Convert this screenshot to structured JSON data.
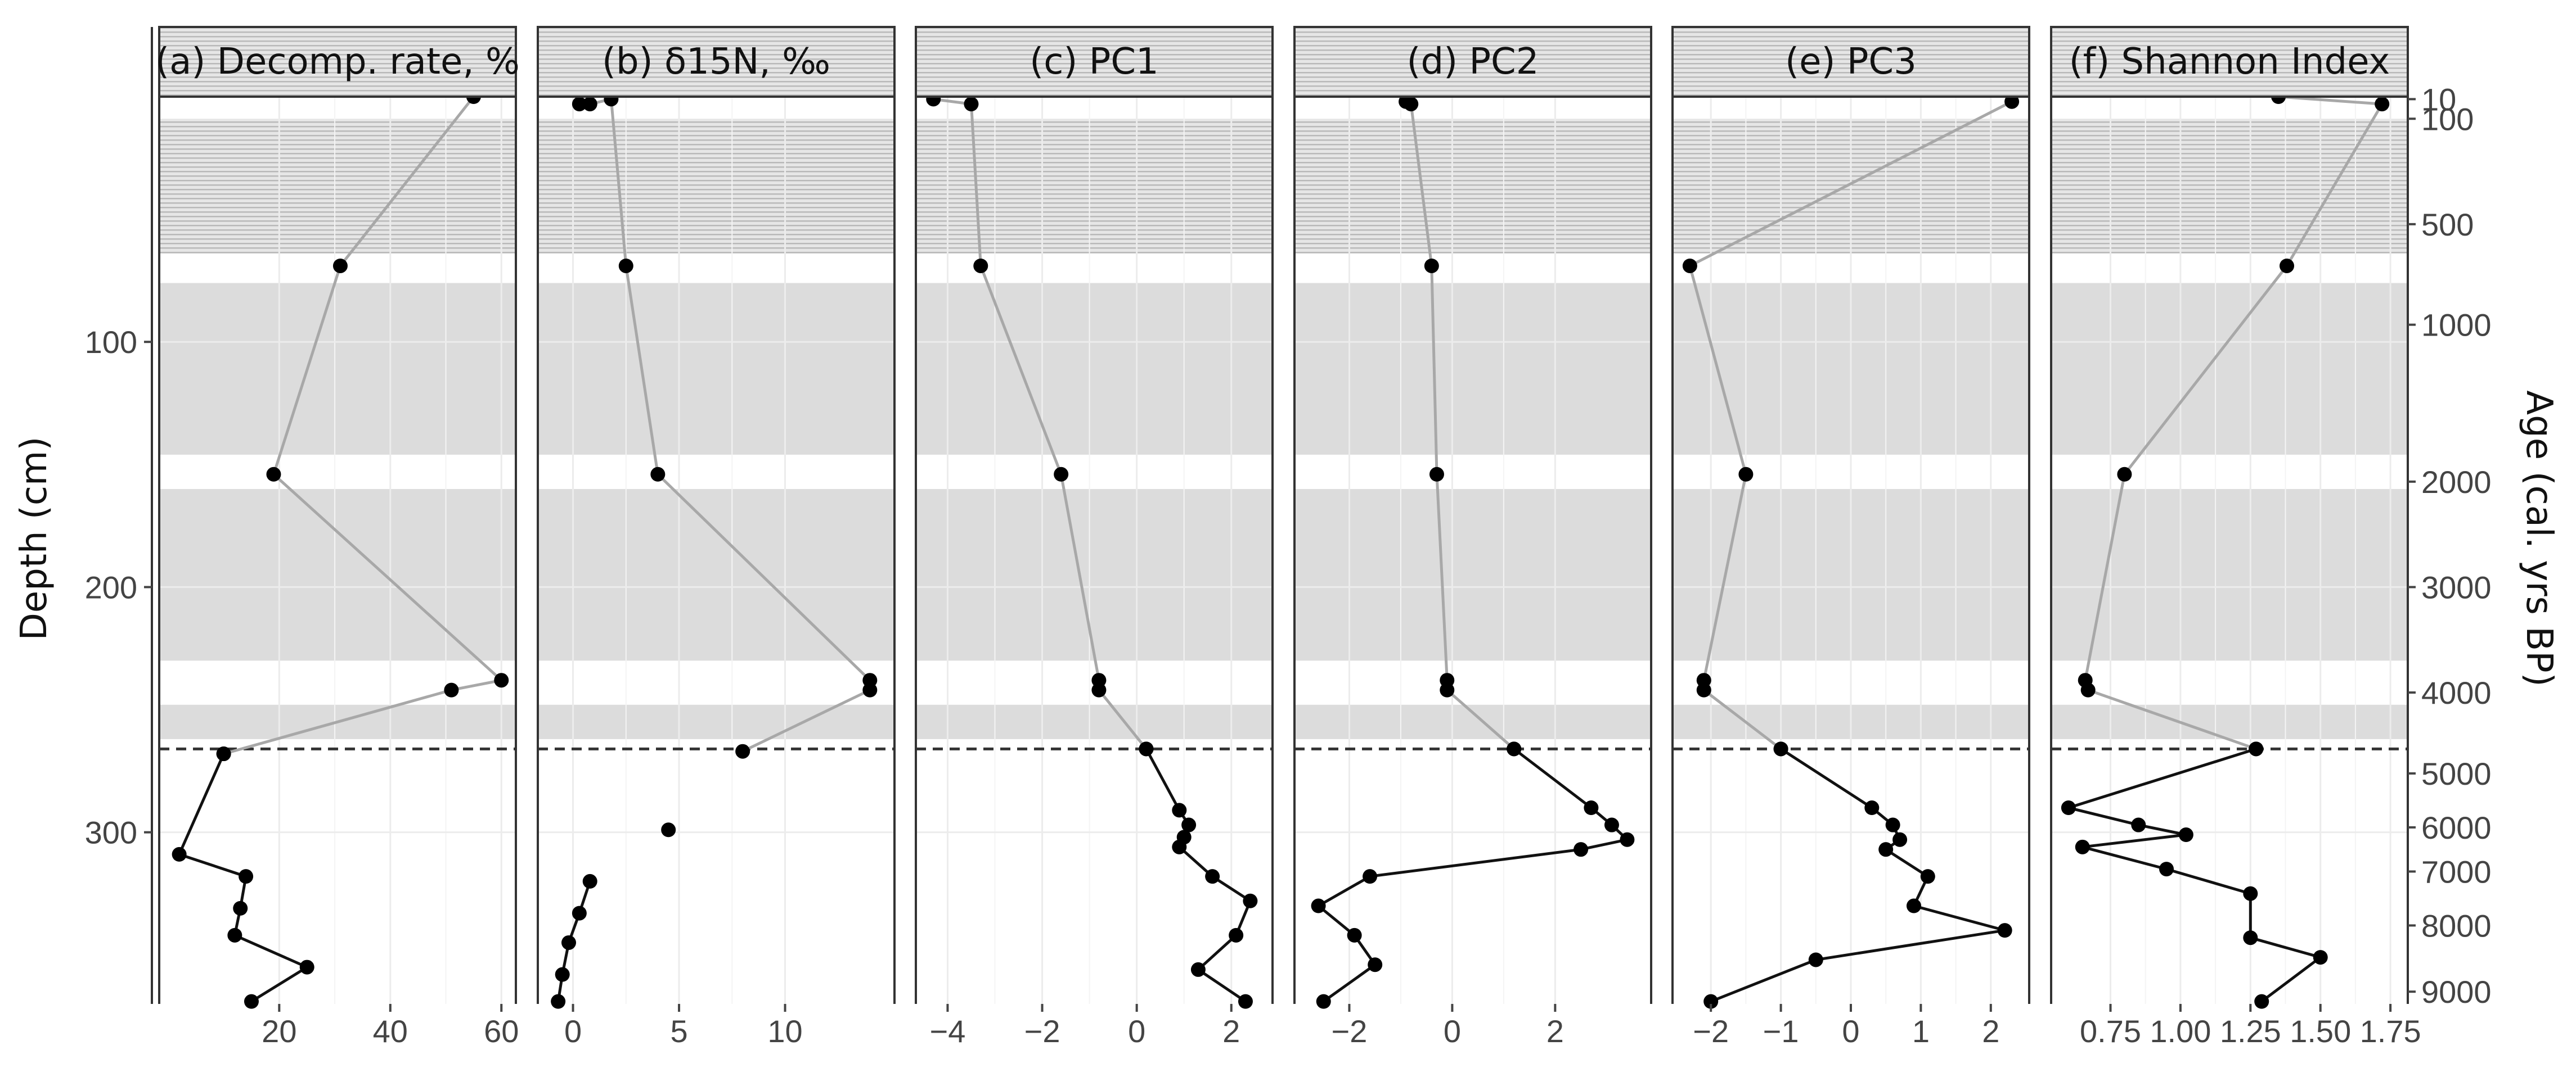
{
  "chart_data": {
    "type": "line",
    "ylabel": "Depth (cm)",
    "y2label": "Age (cal. yrs BP)",
    "ylim": [
      0,
      370
    ],
    "yticks": [
      100,
      200,
      300
    ],
    "age_axis": [
      {
        "label": "10",
        "depth": 1
      },
      {
        "label": "100",
        "depth": 9
      },
      {
        "label": "500",
        "depth": 52
      },
      {
        "label": "1000",
        "depth": 93
      },
      {
        "label": "2000",
        "depth": 157
      },
      {
        "label": "3000",
        "depth": 200
      },
      {
        "label": "4000",
        "depth": 243
      },
      {
        "label": "5000",
        "depth": 276
      },
      {
        "label": "6000",
        "depth": 298
      },
      {
        "label": "7000",
        "depth": 316
      },
      {
        "label": "8000",
        "depth": 338
      },
      {
        "label": "9000",
        "depth": 365
      }
    ],
    "bands": [
      {
        "from": 9,
        "to": 64,
        "style": "hatched"
      },
      {
        "from": 76,
        "to": 146,
        "style": "gray"
      },
      {
        "from": 160,
        "to": 230,
        "style": "gray"
      },
      {
        "from": 248,
        "to": 262,
        "style": "gray"
      }
    ],
    "boundary_depth": 266,
    "panels": [
      {
        "title": "(a) Decomp. rate, %",
        "xlim": [
          -1,
          62
        ],
        "xticks": [
          20,
          40,
          60
        ],
        "xticklabels": [
          "20",
          "40",
          "60"
        ],
        "upper": [
          [
            55,
            0
          ],
          [
            31,
            69
          ],
          [
            19,
            154
          ],
          [
            60,
            238
          ],
          [
            51,
            242
          ],
          [
            10,
            268
          ]
        ],
        "lower": [
          [
            10,
            268
          ],
          [
            2,
            309
          ],
          [
            14,
            318
          ],
          [
            13,
            331
          ],
          [
            12,
            342
          ],
          [
            25,
            355
          ],
          [
            15,
            369
          ]
        ],
        "isolated": []
      },
      {
        "title": "(b) δ15N, ‰",
        "xlim": [
          -1.5,
          15
        ],
        "xticks": [
          0,
          5,
          10
        ],
        "xticklabels": [
          "0",
          "5",
          "10"
        ],
        "upper": [
          [
            0.3,
            3
          ],
          [
            0.8,
            3
          ],
          [
            1.8,
            1
          ],
          [
            2.5,
            69
          ],
          [
            4,
            154
          ],
          [
            14,
            238
          ],
          [
            14,
            242
          ],
          [
            8,
            267
          ]
        ],
        "lower": [
          [
            0.8,
            320
          ],
          [
            0.3,
            333
          ],
          [
            -0.2,
            345
          ],
          [
            -0.5,
            358
          ],
          [
            -0.7,
            369
          ]
        ],
        "isolated": [
          [
            4.5,
            299
          ]
        ]
      },
      {
        "title": "(c) PC1",
        "xlim": [
          -4.6,
          2.8
        ],
        "xticks": [
          -4,
          -2,
          0,
          2
        ],
        "xticklabels": [
          "−4",
          "−2",
          "0",
          "2"
        ],
        "upper": [
          [
            -4.3,
            1
          ],
          [
            -3.5,
            3
          ],
          [
            -3.3,
            69
          ],
          [
            -1.6,
            154
          ],
          [
            -0.8,
            238
          ],
          [
            -0.8,
            242
          ],
          [
            0.2,
            266
          ]
        ],
        "lower": [
          [
            0.2,
            266
          ],
          [
            0.9,
            291
          ],
          [
            1.1,
            297
          ],
          [
            1,
            302
          ],
          [
            0.9,
            306
          ],
          [
            1.6,
            318
          ],
          [
            2.4,
            328
          ],
          [
            2.1,
            342
          ],
          [
            1.3,
            356
          ],
          [
            2.3,
            369
          ]
        ],
        "isolated": []
      },
      {
        "title": "(d) PC2",
        "xlim": [
          -3,
          3.8
        ],
        "xticks": [
          -2,
          0,
          2
        ],
        "xticklabels": [
          "−2",
          "0",
          "2"
        ],
        "upper": [
          [
            -0.9,
            2
          ],
          [
            -0.8,
            3
          ],
          [
            -0.4,
            69
          ],
          [
            -0.3,
            154
          ],
          [
            -0.1,
            238
          ],
          [
            -0.1,
            242
          ],
          [
            1.2,
            266
          ]
        ],
        "lower": [
          [
            1.2,
            266
          ],
          [
            2.7,
            290
          ],
          [
            3.1,
            297
          ],
          [
            3.4,
            303
          ],
          [
            2.5,
            307
          ],
          [
            -1.6,
            318
          ],
          [
            -2.6,
            330
          ],
          [
            -1.9,
            342
          ],
          [
            -1.5,
            354
          ],
          [
            -2.5,
            369
          ]
        ],
        "isolated": []
      },
      {
        "title": "(e) PC3",
        "xlim": [
          -2.5,
          2.5
        ],
        "xticks": [
          -2,
          -1,
          0,
          1,
          2
        ],
        "xticklabels": [
          "−2",
          "−1",
          "0",
          "1",
          "2"
        ],
        "upper": [
          [
            2.3,
            2
          ],
          [
            -2.3,
            69
          ],
          [
            -1.5,
            154
          ],
          [
            -2.1,
            238
          ],
          [
            -2.1,
            242
          ],
          [
            -1,
            266
          ]
        ],
        "lower": [
          [
            -1,
            266
          ],
          [
            0.3,
            290
          ],
          [
            0.6,
            297
          ],
          [
            0.7,
            303
          ],
          [
            0.5,
            307
          ],
          [
            1.1,
            318
          ],
          [
            0.9,
            330
          ],
          [
            2.2,
            340
          ],
          [
            -0.5,
            352
          ],
          [
            -2,
            369
          ]
        ],
        "isolated": []
      },
      {
        "title": "(f) Shannon Index",
        "xlim": [
          0.55,
          1.8
        ],
        "xticks": [
          0.75,
          1,
          1.25,
          1.5,
          1.75
        ],
        "xticklabels": [
          "0.75",
          "1.00",
          "1.25",
          "1.50",
          "1.75"
        ],
        "upper": [
          [
            1.35,
            0
          ],
          [
            1.72,
            3
          ],
          [
            1.38,
            69
          ],
          [
            0.8,
            154
          ],
          [
            0.66,
            238
          ],
          [
            0.67,
            242
          ],
          [
            1.27,
            266
          ]
        ],
        "lower": [
          [
            1.27,
            266
          ],
          [
            0.6,
            290
          ],
          [
            0.85,
            297
          ],
          [
            1.02,
            301
          ],
          [
            0.65,
            306
          ],
          [
            0.95,
            315
          ],
          [
            1.25,
            325
          ],
          [
            1.25,
            343
          ],
          [
            1.5,
            351
          ],
          [
            1.29,
            369
          ]
        ],
        "isolated": []
      }
    ]
  }
}
